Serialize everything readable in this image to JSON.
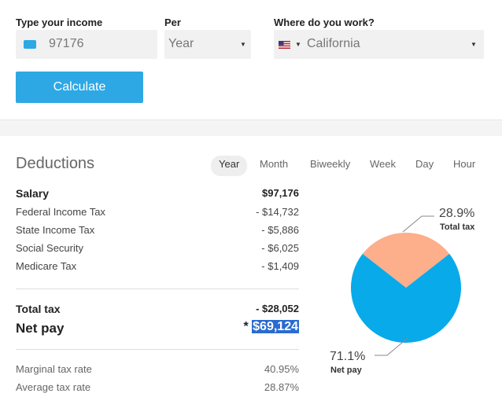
{
  "form": {
    "income_label": "Type your income",
    "income_value": "97176",
    "per_label": "Per",
    "per_value": "Year",
    "where_label": "Where do you work?",
    "where_value": "California",
    "calculate_label": "Calculate"
  },
  "deductions": {
    "title": "Deductions",
    "tabs": [
      "Year",
      "Month",
      "Biweekly",
      "Week",
      "Day",
      "Hour"
    ],
    "active_tab": "Year",
    "rows": [
      {
        "label": "Salary",
        "value": "$97,176"
      },
      {
        "label": "Federal Income Tax",
        "value": "- $14,732"
      },
      {
        "label": "State Income Tax",
        "value": "- $5,886"
      },
      {
        "label": "Social Security",
        "value": "- $6,025"
      },
      {
        "label": "Medicare Tax",
        "value": "- $1,409"
      }
    ],
    "total_tax_label": "Total tax",
    "total_tax_value": "- $28,052",
    "net_pay_label": "Net pay",
    "net_pay_star": "*",
    "net_pay_value": "$69,124",
    "rates": [
      {
        "label": "Marginal tax rate",
        "value": "40.95%"
      },
      {
        "label": "Average tax rate",
        "value": "28.87%"
      }
    ]
  },
  "pie": {
    "total_tax_pct": "28.9%",
    "total_tax_label": "Total tax",
    "net_pay_pct": "71.1%",
    "net_pay_label": "Net pay",
    "total_tax_fraction": 0.289,
    "net_pay_fraction": 0.711,
    "colors": {
      "total_tax": "#fdae8a",
      "net_pay": "#08aaea",
      "accent": "#2ea8e5"
    }
  }
}
